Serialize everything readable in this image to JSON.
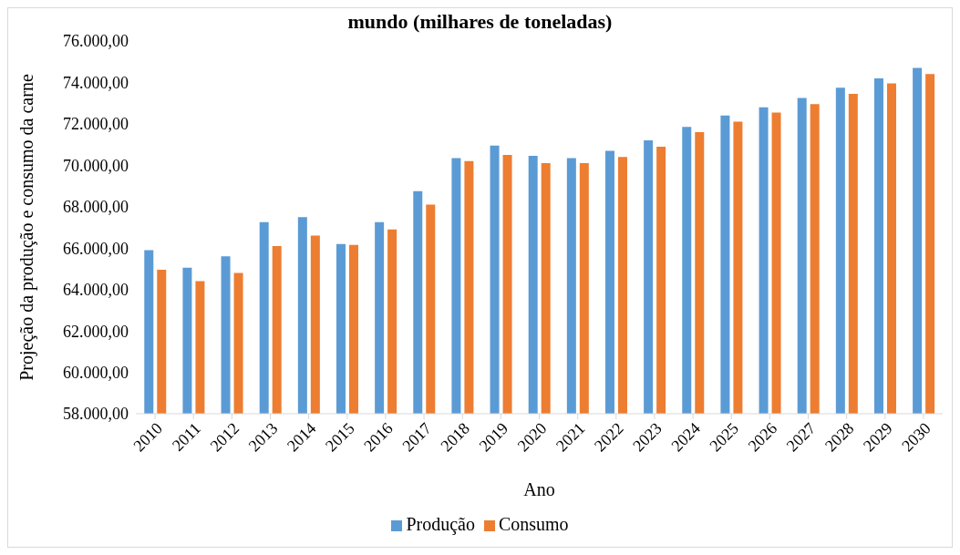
{
  "chart_data": {
    "type": "bar",
    "title": "mundo (milhares de toneladas)",
    "xlabel": "Ano",
    "ylabel": "Projeção da produção e consumo da carne",
    "categories": [
      "2010",
      "2011",
      "2012",
      "2013",
      "2014",
      "2015",
      "2016",
      "2017",
      "2018",
      "2019",
      "2020",
      "2021",
      "2022",
      "2023",
      "2024",
      "2025",
      "2026",
      "2027",
      "2028",
      "2029",
      "2030"
    ],
    "series": [
      {
        "name": "Produção",
        "color": "#5b9bd5",
        "values": [
          65900,
          65050,
          65600,
          67250,
          67500,
          66200,
          67250,
          68750,
          70350,
          70950,
          70450,
          70350,
          70700,
          71200,
          71850,
          72400,
          72800,
          73250,
          73750,
          74200,
          74700
        ]
      },
      {
        "name": "Consumo",
        "color": "#ed7d31",
        "values": [
          64950,
          64400,
          64800,
          66100,
          66600,
          66150,
          66900,
          68100,
          70200,
          70500,
          70100,
          70100,
          70400,
          70900,
          71600,
          72100,
          72550,
          72950,
          73450,
          73950,
          74400
        ]
      }
    ],
    "ylim": [
      58000,
      76000
    ],
    "yticks": [
      {
        "value": 58000,
        "label": "58.000,00"
      },
      {
        "value": 60000,
        "label": "60.000,00"
      },
      {
        "value": 62000,
        "label": "62.000,00"
      },
      {
        "value": 64000,
        "label": "64.000,00"
      },
      {
        "value": 66000,
        "label": "66.000,00"
      },
      {
        "value": 68000,
        "label": "68.000,00"
      },
      {
        "value": 70000,
        "label": "70.000,00"
      },
      {
        "value": 72000,
        "label": "72.000,00"
      },
      {
        "value": 74000,
        "label": "74.000,00"
      },
      {
        "value": 76000,
        "label": "76.000,00"
      }
    ],
    "grid": false,
    "legend": "bottom"
  }
}
